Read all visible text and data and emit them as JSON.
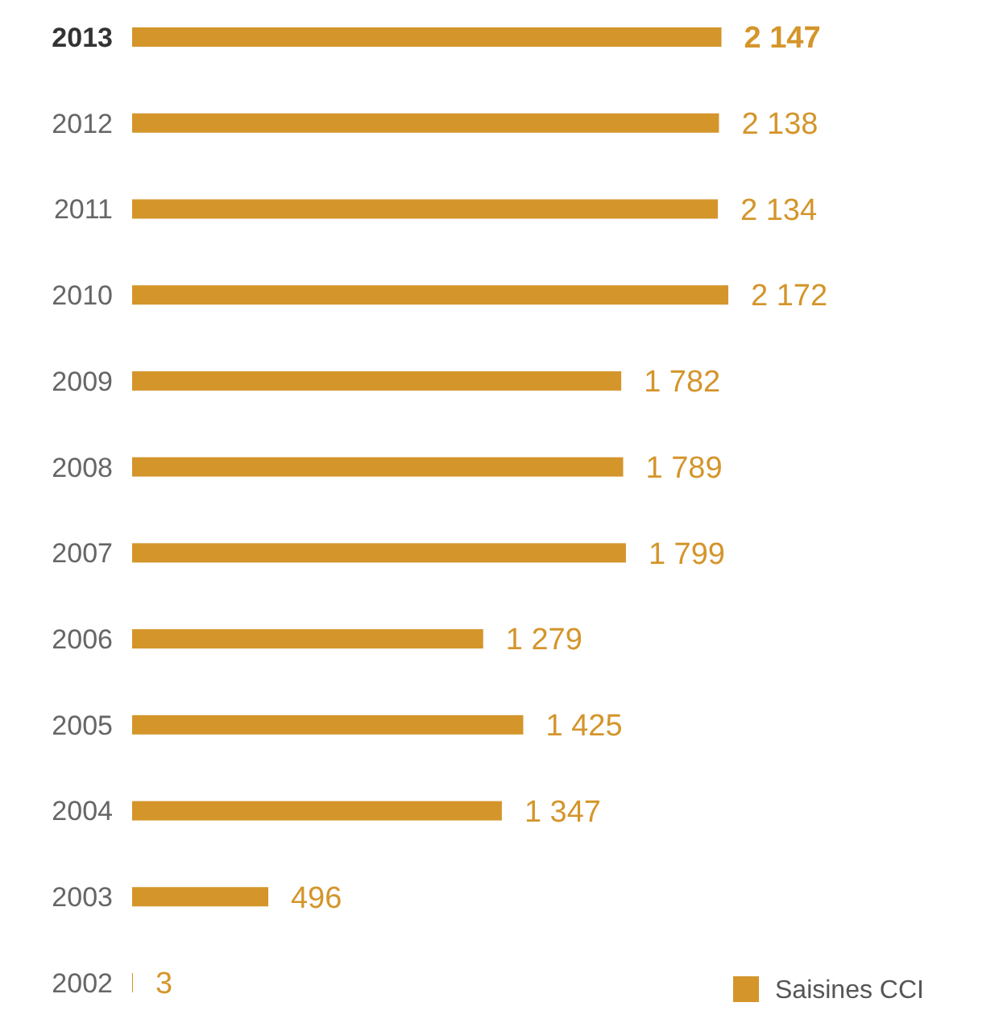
{
  "chart_data": {
    "type": "bar",
    "orientation": "horizontal",
    "categories": [
      "2013",
      "2012",
      "2011",
      "2010",
      "2009",
      "2008",
      "2007",
      "2006",
      "2005",
      "2004",
      "2003",
      "2002"
    ],
    "series": [
      {
        "name": "Saisines CCI",
        "color": "#d4952b",
        "values": [
          2147,
          2138,
          2134,
          2172,
          1782,
          1789,
          1799,
          1279,
          1425,
          1347,
          496,
          3
        ],
        "value_labels": [
          "2 147",
          "2 138",
          "2 134",
          "2 172",
          "1 782",
          "1 789",
          "1 799",
          "1 279",
          "1 425",
          "1 347",
          "496",
          "3"
        ]
      }
    ],
    "legend": "bottom right",
    "tick_labels": "y",
    "grid": false
  }
}
